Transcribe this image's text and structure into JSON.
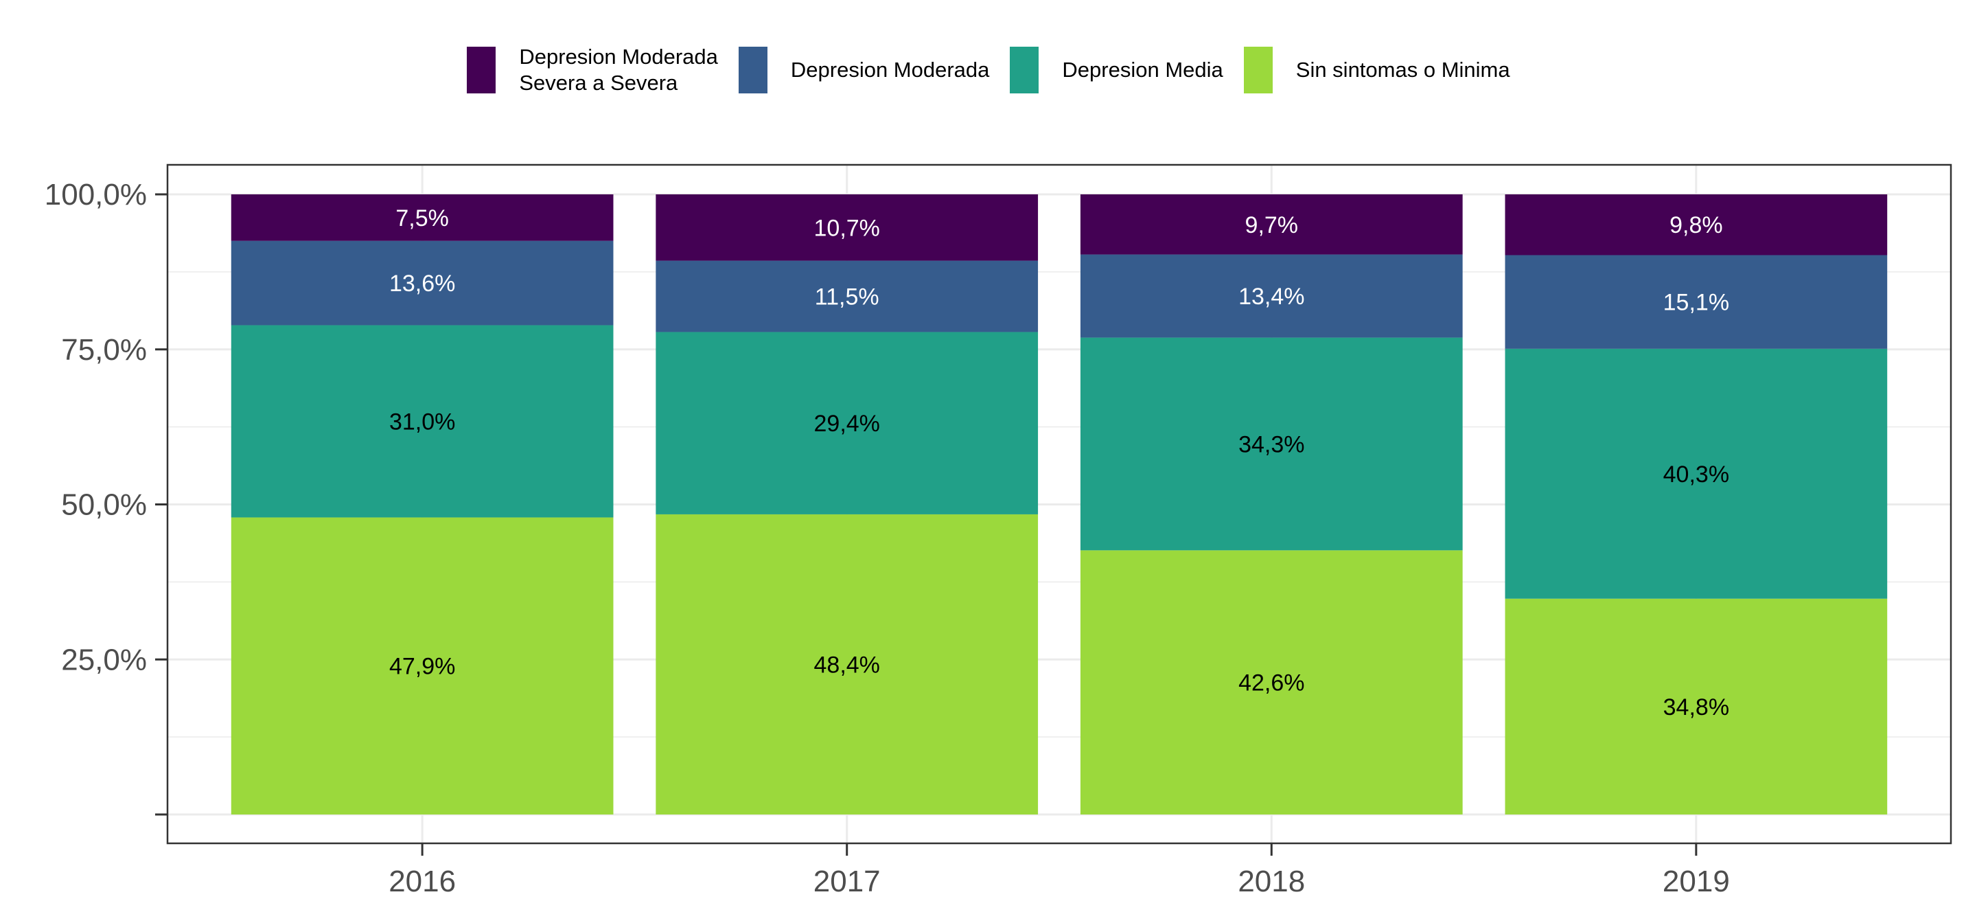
{
  "chart_data": {
    "type": "bar",
    "stacked": true,
    "categories": [
      "2016",
      "2017",
      "2018",
      "2019"
    ],
    "series": [
      {
        "name": "Depresion Moderada\nSevera a Severa",
        "color": "#440154",
        "values": [
          7.5,
          10.7,
          9.7,
          9.8
        ],
        "labels": [
          "7,5%",
          "10,7%",
          "9,7%",
          "9,8%"
        ],
        "label_color": "#ffffff"
      },
      {
        "name": "Depresion Moderada",
        "color": "#365c8d",
        "values": [
          13.6,
          11.5,
          13.4,
          15.1
        ],
        "labels": [
          "13,6%",
          "11,5%",
          "13,4%",
          "15,1%"
        ],
        "label_color": "#ffffff"
      },
      {
        "name": "Depresion Media",
        "color": "#21a088",
        "values": [
          31.0,
          29.4,
          34.3,
          40.3
        ],
        "labels": [
          "31,0%",
          "29,4%",
          "34,3%",
          "40,3%"
        ],
        "label_color": "#000000"
      },
      {
        "name": "Sin sintomas o Minima",
        "color": "#9bd93c",
        "values": [
          47.9,
          48.4,
          42.6,
          34.8
        ],
        "labels": [
          "47,9%",
          "48,4%",
          "42,6%",
          "34,8%"
        ],
        "label_color": "#000000"
      }
    ],
    "ylim": [
      0,
      100
    ],
    "yticks": [
      25,
      50,
      75,
      100
    ],
    "ytick_labels": [
      "25,0%",
      "50,0%",
      "75,0%",
      "100,0%"
    ],
    "grid": true,
    "legend_position": "top"
  }
}
